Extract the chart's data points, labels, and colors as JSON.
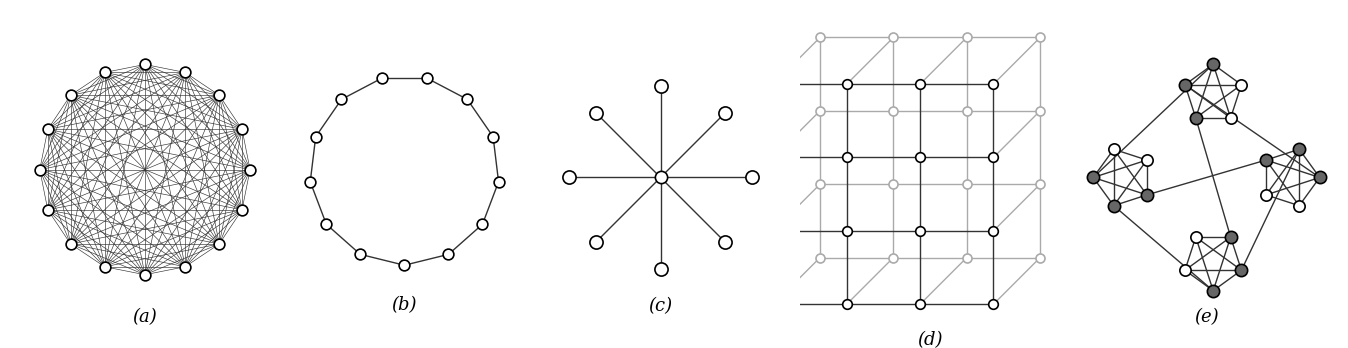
{
  "fig_width": 13.48,
  "fig_height": 3.48,
  "bg_color": "#ffffff",
  "node_edge_color": "#000000",
  "node_face_color": "#ffffff",
  "dark_node_face_color": "#666666",
  "edge_color": "#333333",
  "light_edge_color": "#aaaaaa",
  "label_color": "#000000",
  "label_fontsize": 13,
  "gbest_n": 16,
  "ring_n": 13,
  "star_spokes": 8,
  "labels": [
    "(a)",
    "(b)",
    "(c)",
    "(d)",
    "(e)"
  ]
}
